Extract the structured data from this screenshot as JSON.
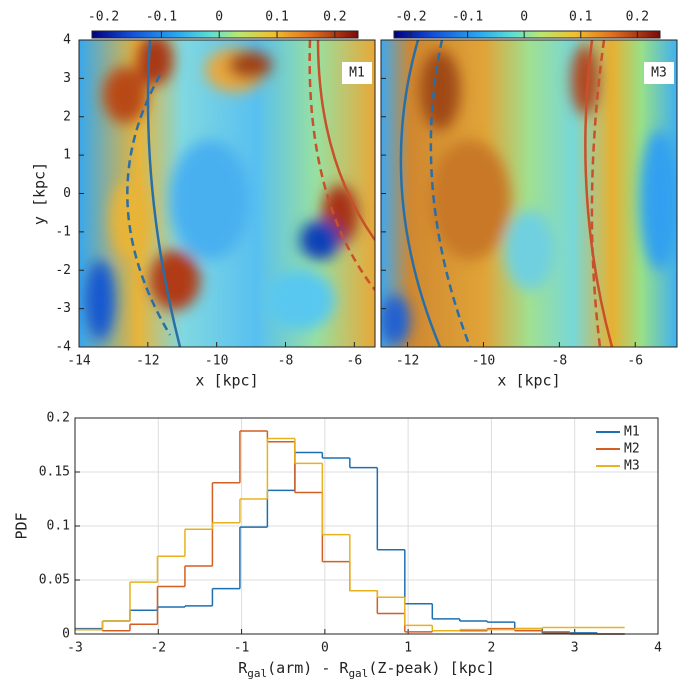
{
  "panels": [
    {
      "label": "M1",
      "xlim": [
        -14,
        -5.4
      ],
      "xticks": [
        -14,
        -12,
        -10,
        -8,
        -6
      ],
      "ylim": [
        -4,
        4
      ],
      "yticks": [
        -4,
        -3,
        -2,
        -1,
        0,
        1,
        2,
        3,
        4
      ],
      "xlabel": "x [kpc]",
      "ylabel": "y [kpc]",
      "clim": [
        -0.22,
        0.24
      ],
      "cticks": [
        -0.2,
        -0.1,
        0,
        0.1,
        0.2
      ]
    },
    {
      "label": "M3",
      "xlim": [
        -12.7,
        -4.9
      ],
      "xticks": [
        -12,
        -10,
        -8,
        -6
      ],
      "ylim": [
        -4,
        4
      ],
      "yticks": [
        -4,
        -3,
        -2,
        -1,
        0,
        1,
        2,
        3,
        4
      ],
      "xlabel": "x [kpc]",
      "clim": [
        -0.23,
        0.24
      ],
      "cticks": [
        -0.2,
        -0.1,
        0,
        0.1,
        0.2
      ]
    }
  ],
  "chart_data": {
    "type": "histogram",
    "bins": [
      -3,
      -2.67,
      -2.34,
      -2.01,
      -1.68,
      -1.35,
      -1.02,
      -0.69,
      -0.36,
      -0.03,
      0.3,
      0.63,
      0.96,
      1.29,
      1.62,
      1.95,
      2.28,
      2.61,
      2.94,
      3.27,
      3.6
    ],
    "series": [
      {
        "name": "M1",
        "color": "#1f6fb0",
        "values": [
          0.005,
          0.012,
          0.022,
          0.025,
          0.026,
          0.042,
          0.099,
          0.133,
          0.168,
          0.163,
          0.154,
          0.078,
          0.028,
          0.014,
          0.012,
          0.011,
          0.005,
          0.001,
          0.001,
          0
        ]
      },
      {
        "name": "M2",
        "color": "#d35f23",
        "values": [
          0.004,
          0.003,
          0.009,
          0.044,
          0.063,
          0.14,
          0.188,
          0.178,
          0.131,
          0.067,
          0.04,
          0.019,
          0.002,
          0.003,
          0.003,
          0.005,
          0.003,
          0.002,
          0,
          0
        ]
      },
      {
        "name": "M3",
        "color": "#e8b21e",
        "values": [
          0.004,
          0.012,
          0.048,
          0.072,
          0.097,
          0.103,
          0.125,
          0.181,
          0.158,
          0.092,
          0.04,
          0.034,
          0.008,
          0.003,
          0.004,
          0.004,
          0.005,
          0.006,
          0.006,
          0.006
        ]
      }
    ],
    "xlim": [
      -3,
      4
    ],
    "xticks": [
      -3,
      -2,
      -1,
      0,
      1,
      2,
      3,
      4
    ],
    "ylim": [
      0,
      0.2
    ],
    "yticks": [
      0,
      0.05,
      0.1,
      0.15,
      0.2
    ],
    "grid": true,
    "legend": "upper right",
    "ylabel": "PDF",
    "xlabel": [
      "R",
      "gal",
      "(arm) - R",
      "gal",
      "(Z-peak) [kpc]"
    ]
  }
}
